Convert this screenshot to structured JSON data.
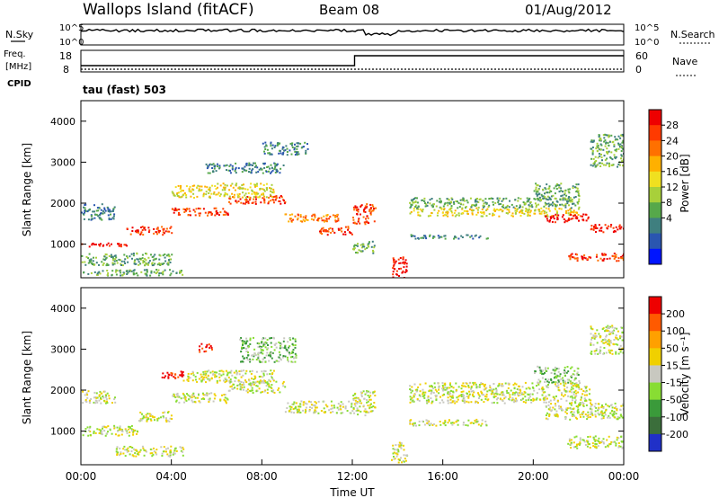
{
  "header": {
    "station": "Wallops Island (fitACF)",
    "beam": "Beam 08",
    "date": "01/Aug/2012"
  },
  "status_panels": {
    "nsky_label": "N.Sky",
    "nsearch_label": "N.Search",
    "nsky_tick_top": "10^5",
    "nsky_tick_bottom": "10^0",
    "nsearch_tick_top": "10^5",
    "nsearch_tick_bottom": "10^0",
    "freq_label": "Freq.",
    "freq_unit": "[MHz]",
    "freq_tick_top": "18",
    "freq_tick_bottom": "8",
    "nave_label": "Nave",
    "nave_tick_top": "60",
    "nave_tick_bottom": "0",
    "cpid_label": "CPID",
    "cpid_value": "tau (fast) 503",
    "freq_step_hour": 12.1
  },
  "chart_data": [
    {
      "type": "heatmap",
      "panel": "power",
      "ylabel": "Slant Range [km]",
      "xlabel": "",
      "xlim": [
        0,
        24
      ],
      "ylim": [
        180,
        4500
      ],
      "yticks": [
        1000,
        2000,
        3000,
        4000
      ],
      "colorbar": {
        "label": "Power [dB]",
        "ticks": [
          "28",
          "24",
          "20",
          "16",
          "12",
          "8",
          "4"
        ],
        "colors": [
          "#0015ff",
          "#2a56b0",
          "#3f7f7f",
          "#56a84a",
          "#a8d03a",
          "#f0e020",
          "#ffb000",
          "#ff7000",
          "#ff3a00",
          "#ee0000"
        ]
      },
      "echo_bands": [
        {
          "x0": 0.0,
          "x1": 2.0,
          "y0": 950,
          "y1": 1050,
          "level": 9
        },
        {
          "x0": 2.0,
          "x1": 4.0,
          "y0": 1250,
          "y1": 1450,
          "level": 8
        },
        {
          "x0": 4.0,
          "x1": 6.5,
          "y0": 1700,
          "y1": 1900,
          "level": 8
        },
        {
          "x0": 6.5,
          "x1": 9.0,
          "y0": 2000,
          "y1": 2200,
          "level": 8
        },
        {
          "x0": 9.0,
          "x1": 11.5,
          "y0": 1550,
          "y1": 1750,
          "level": 7
        },
        {
          "x0": 10.5,
          "x1": 12.0,
          "y0": 1250,
          "y1": 1450,
          "level": 8
        },
        {
          "x0": 0.0,
          "x1": 1.5,
          "y0": 1600,
          "y1": 2000,
          "level": 2
        },
        {
          "x0": 4.0,
          "x1": 6.0,
          "y0": 2150,
          "y1": 2450,
          "level": 5
        },
        {
          "x0": 6.0,
          "x1": 8.5,
          "y0": 2150,
          "y1": 2500,
          "level": 5
        },
        {
          "x0": 5.5,
          "x1": 9.0,
          "y0": 2750,
          "y1": 3000,
          "level": 2
        },
        {
          "x0": 8.0,
          "x1": 10.0,
          "y0": 3200,
          "y1": 3500,
          "level": 2
        },
        {
          "x0": 0.0,
          "x1": 4.0,
          "y0": 500,
          "y1": 800,
          "level": 3
        },
        {
          "x0": 0.0,
          "x1": 4.5,
          "y0": 250,
          "y1": 400,
          "level": 3
        },
        {
          "x0": 12.0,
          "x1": 13.0,
          "y0": 1500,
          "y1": 2000,
          "level": 8
        },
        {
          "x0": 12.0,
          "x1": 13.0,
          "y0": 800,
          "y1": 1100,
          "level": 3
        },
        {
          "x0": 13.7,
          "x1": 14.4,
          "y0": 200,
          "y1": 700,
          "level": 9
        },
        {
          "x0": 14.5,
          "x1": 22.0,
          "y0": 1700,
          "y1": 1900,
          "level": 5
        },
        {
          "x0": 14.5,
          "x1": 22.0,
          "y0": 1900,
          "y1": 2150,
          "level": 3
        },
        {
          "x0": 14.5,
          "x1": 18.0,
          "y0": 1150,
          "y1": 1250,
          "level": 2
        },
        {
          "x0": 20.5,
          "x1": 22.5,
          "y0": 1550,
          "y1": 1750,
          "level": 9
        },
        {
          "x0": 22.5,
          "x1": 24.0,
          "y0": 1300,
          "y1": 1500,
          "level": 9
        },
        {
          "x0": 21.5,
          "x1": 24.0,
          "y0": 600,
          "y1": 800,
          "level": 8
        },
        {
          "x0": 20.0,
          "x1": 22.0,
          "y0": 2100,
          "y1": 2500,
          "level": 3
        },
        {
          "x0": 22.5,
          "x1": 24.0,
          "y0": 2900,
          "y1": 3700,
          "level": 3
        }
      ]
    },
    {
      "type": "heatmap",
      "panel": "velocity",
      "ylabel": "Slant Range [km]",
      "xlabel": "Time UT",
      "xlim": [
        0,
        24
      ],
      "ylim": [
        180,
        4500
      ],
      "xticks": [
        "00:00",
        "04:00",
        "08:00",
        "12:00",
        "16:00",
        "20:00",
        "00:00"
      ],
      "yticks": [
        1000,
        2000,
        3000,
        4000
      ],
      "colorbar": {
        "label": "Velocity [m s⁻¹]",
        "ticks": [
          "200",
          "100",
          "50",
          "15",
          "-15",
          "-50",
          "-100",
          "-200"
        ],
        "colors": [
          "#2030c8",
          "#3b6e3b",
          "#3a9a3a",
          "#88dd33",
          "#c8c8c0",
          "#f0d000",
          "#ffa000",
          "#ff5a00",
          "#ee0000"
        ]
      },
      "echo_bands": [
        {
          "x0": 0.0,
          "x1": 2.5,
          "y0": 900,
          "y1": 1150,
          "level": 4
        },
        {
          "x0": 2.5,
          "x1": 4.0,
          "y0": 1250,
          "y1": 1500,
          "level": 4
        },
        {
          "x0": 4.0,
          "x1": 6.5,
          "y0": 1700,
          "y1": 1950,
          "level": 4
        },
        {
          "x0": 6.5,
          "x1": 9.0,
          "y0": 1950,
          "y1": 2250,
          "level": 4
        },
        {
          "x0": 9.0,
          "x1": 12.0,
          "y0": 1450,
          "y1": 1750,
          "level": 4
        },
        {
          "x0": 0.0,
          "x1": 1.5,
          "y0": 1700,
          "y1": 2000,
          "level": 4
        },
        {
          "x0": 4.5,
          "x1": 8.5,
          "y0": 2200,
          "y1": 2500,
          "level": 4
        },
        {
          "x0": 3.5,
          "x1": 4.5,
          "y0": 2300,
          "y1": 2500,
          "level": 8
        },
        {
          "x0": 5.2,
          "x1": 5.8,
          "y0": 2950,
          "y1": 3150,
          "level": 8
        },
        {
          "x0": 7.0,
          "x1": 9.5,
          "y0": 2700,
          "y1": 3300,
          "level": 3
        },
        {
          "x0": 1.5,
          "x1": 4.5,
          "y0": 400,
          "y1": 650,
          "level": 4
        },
        {
          "x0": 12.0,
          "x1": 13.0,
          "y0": 1400,
          "y1": 2000,
          "level": 4
        },
        {
          "x0": 13.7,
          "x1": 14.4,
          "y0": 250,
          "y1": 750,
          "level": 4
        },
        {
          "x0": 14.5,
          "x1": 22.5,
          "y0": 1700,
          "y1": 2200,
          "level": 4
        },
        {
          "x0": 14.5,
          "x1": 18.0,
          "y0": 1150,
          "y1": 1300,
          "level": 4
        },
        {
          "x0": 20.5,
          "x1": 24.0,
          "y0": 1300,
          "y1": 1700,
          "level": 4
        },
        {
          "x0": 21.5,
          "x1": 24.0,
          "y0": 600,
          "y1": 900,
          "level": 4
        },
        {
          "x0": 22.5,
          "x1": 24.0,
          "y0": 2900,
          "y1": 3600,
          "level": 4
        },
        {
          "x0": 20.0,
          "x1": 22.0,
          "y0": 2200,
          "y1": 2600,
          "level": 3
        }
      ]
    }
  ]
}
